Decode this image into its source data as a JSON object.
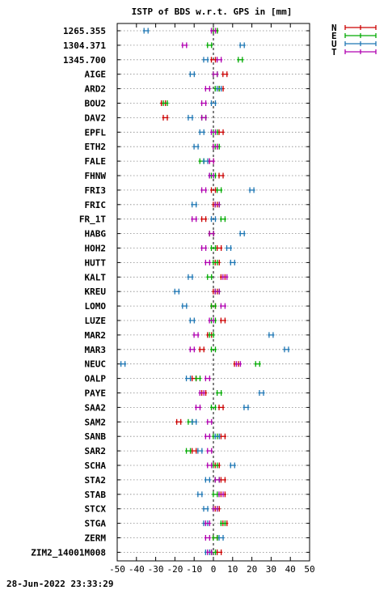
{
  "chart_data": {
    "type": "scatter",
    "title": "ISTP of BDS w.r.t. GPS in [mm]",
    "xlim": [
      -50,
      50
    ],
    "xticks": [
      -50,
      -40,
      -30,
      -20,
      -10,
      0,
      10,
      20,
      30,
      40,
      50
    ],
    "grid": "horizontal dotted",
    "legend_position": "top-right",
    "components": [
      "N",
      "E",
      "U",
      "T"
    ],
    "colors": {
      "N": "#cc0000",
      "E": "#00aa00",
      "U": "#1f77b4",
      "T": "#b000b0"
    },
    "categories": [
      "1265.355",
      "1304.371",
      "1345.700",
      "AIGE",
      "ARD2",
      "BOU2",
      "DAV2",
      "EPFL",
      "ETH2",
      "FALE",
      "FHNW",
      "FRI3",
      "FRIC",
      "FR_1T",
      "HABG",
      "HOH2",
      "HUTT",
      "KALT",
      "KREU",
      "LOMO",
      "LUZE",
      "MAR2",
      "MAR3",
      "NEUC",
      "OALP",
      "PAYE",
      "SAA2",
      "SAM2",
      "SANB",
      "SAR2",
      "SCHA",
      "STA2",
      "STAB",
      "STCX",
      "STGA",
      "ZERM",
      "ZIM2_14001M008"
    ],
    "series": [
      {
        "name": "N",
        "values": [
          1,
          null,
          0,
          6,
          4,
          -26,
          -25,
          4,
          1,
          -1,
          4,
          0,
          1,
          -5,
          -1,
          3,
          2,
          5,
          1,
          0,
          5,
          -2,
          -6,
          12,
          -10,
          -5,
          4,
          -18,
          5,
          -10,
          2,
          5,
          5,
          2,
          6,
          1,
          3
        ]
      },
      {
        "name": "E",
        "values": [
          1,
          -2,
          14,
          1,
          2,
          -25,
          -5,
          1,
          2,
          -6,
          0,
          3,
          2,
          5,
          -1,
          0,
          1,
          -2,
          2,
          0,
          0,
          -1,
          0,
          23,
          -8,
          3,
          0,
          -12,
          1,
          -13,
          1,
          2,
          1,
          1,
          5,
          1,
          0
        ]
      },
      {
        "name": "U",
        "values": [
          -35,
          15,
          -4,
          -11,
          3,
          0,
          -12,
          -6,
          -9,
          -4,
          -1,
          20,
          -10,
          0,
          15,
          8,
          10,
          -12,
          -19,
          -15,
          -11,
          30,
          38,
          -47,
          -13,
          25,
          17,
          -10,
          2,
          -7,
          10,
          -3,
          -7,
          -4,
          -4,
          4,
          -3
        ]
      },
      {
        "name": "T",
        "values": [
          0,
          -15,
          3,
          1,
          -3,
          -5,
          -5,
          0,
          1,
          -1,
          -1,
          -5,
          2,
          -10,
          -1,
          -5,
          -3,
          6,
          2,
          5,
          -1,
          -9,
          -11,
          13,
          -3,
          -6,
          -8,
          -2,
          -3,
          -2,
          -2,
          2,
          4,
          1,
          -3,
          -3,
          -2
        ]
      }
    ]
  },
  "footer": {
    "timestamp": "28-Jun-2022 23:33:29"
  }
}
